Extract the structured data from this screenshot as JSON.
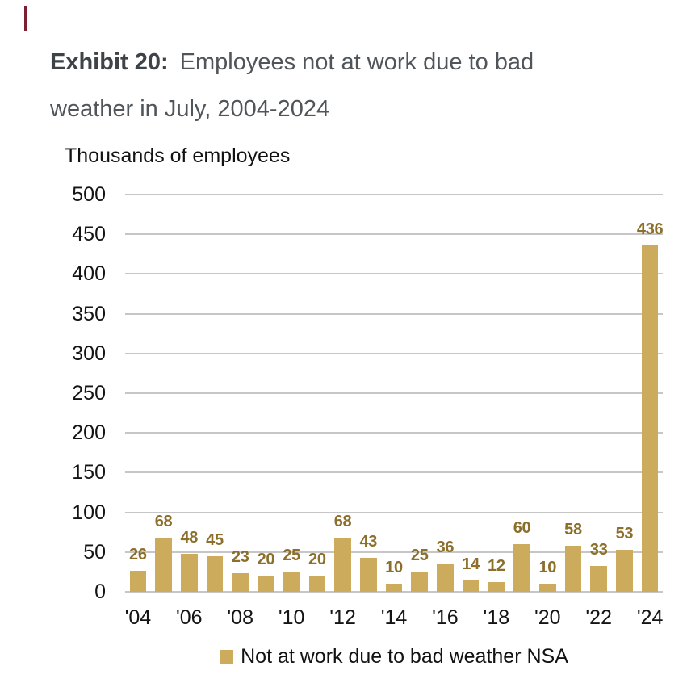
{
  "page": {
    "background_color": "#ffffff",
    "accent_color": "#7d1f2e"
  },
  "exhibit": {
    "label": "Exhibit 20:",
    "title": "Employees not at work due to bad weather in July, 2004-2024"
  },
  "chart_data": {
    "type": "bar",
    "axis_label": "Thousands of employees",
    "years": [
      2004,
      2005,
      2006,
      2007,
      2008,
      2009,
      2010,
      2011,
      2012,
      2013,
      2014,
      2015,
      2016,
      2017,
      2018,
      2019,
      2020,
      2021,
      2022,
      2023,
      2024
    ],
    "values": [
      26,
      68,
      48,
      45,
      23,
      20,
      25,
      20,
      68,
      43,
      10,
      25,
      36,
      14,
      12,
      60,
      10,
      58,
      33,
      53,
      436
    ],
    "x_tick_labels": [
      "'04",
      "'06",
      "'08",
      "'10",
      "'12",
      "'14",
      "'16",
      "'18",
      "'20",
      "'22",
      "'24"
    ],
    "yticks": [
      0,
      50,
      100,
      150,
      200,
      250,
      300,
      350,
      400,
      450,
      500
    ],
    "ylim": [
      0,
      500
    ],
    "grid": true,
    "bar_color": "#ccab5c",
    "value_label_color": "#8b6f2b",
    "gridline_color": "#c6c6c6",
    "legend_label": "Not at work due to bad weather NSA",
    "legend_position": "bottom"
  }
}
